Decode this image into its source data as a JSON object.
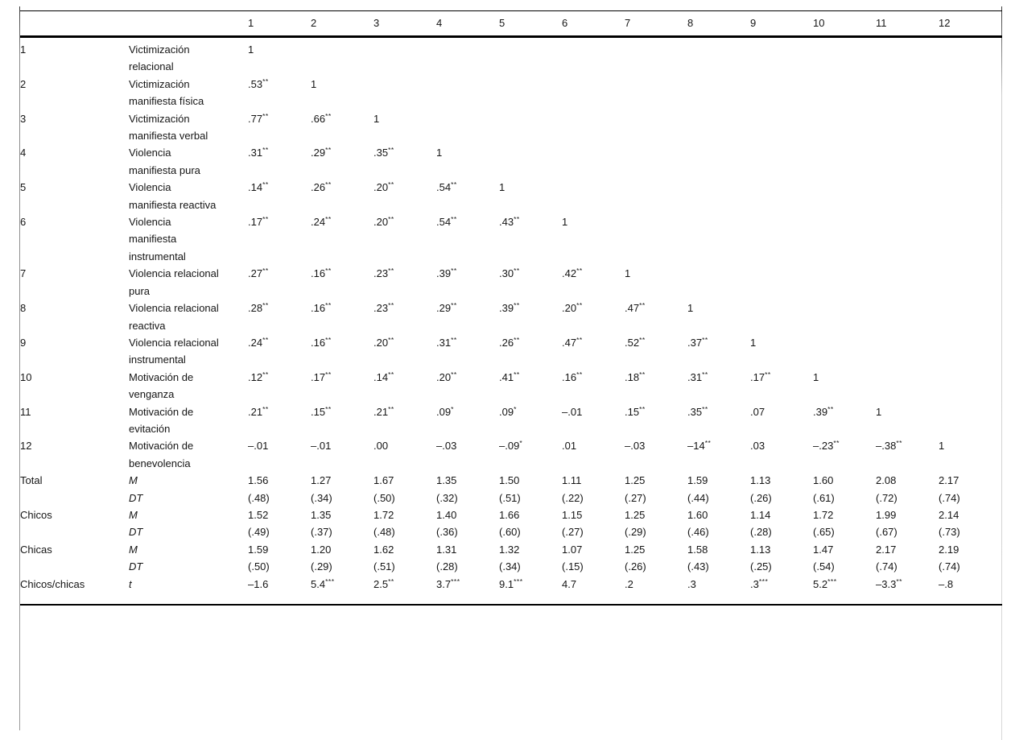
{
  "table": {
    "header_cols": [
      "1",
      "2",
      "3",
      "4",
      "5",
      "6",
      "7",
      "8",
      "9",
      "10",
      "11",
      "12"
    ],
    "variables": [
      {
        "num": "1",
        "name": "Victimización relacional",
        "values": [
          "1"
        ]
      },
      {
        "num": "2",
        "name": "Victimización manifiesta física",
        "values": [
          ".53**",
          "1"
        ]
      },
      {
        "num": "3",
        "name": "Victimización manifiesta verbal",
        "values": [
          ".77**",
          ".66**",
          "1"
        ]
      },
      {
        "num": "4",
        "name": "Violencia manifiesta pura",
        "values": [
          ".31**",
          ".29**",
          ".35**",
          "1"
        ]
      },
      {
        "num": "5",
        "name": "Violencia manifiesta reactiva",
        "values": [
          ".14**",
          ".26**",
          ".20**",
          ".54**",
          "1"
        ]
      },
      {
        "num": "6",
        "name": "Violencia manifiesta instrumental",
        "values": [
          ".17**",
          ".24**",
          ".20**",
          ".54**",
          ".43**",
          "1"
        ]
      },
      {
        "num": "7",
        "name": "Violencia relacional pura",
        "values": [
          ".27**",
          ".16**",
          ".23**",
          ".39**",
          ".30**",
          ".42**",
          "1"
        ]
      },
      {
        "num": "8",
        "name": "Violencia relacional reactiva",
        "values": [
          ".28**",
          ".16**",
          ".23**",
          ".29**",
          ".39**",
          ".20**",
          ".47**",
          "1"
        ]
      },
      {
        "num": "9",
        "name": "Violencia relacional instrumental",
        "values": [
          ".24**",
          ".16**",
          ".20**",
          ".31**",
          ".26**",
          ".47**",
          ".52**",
          ".37**",
          "1"
        ]
      },
      {
        "num": "10",
        "name": "Motivación de venganza",
        "values": [
          ".12**",
          ".17**",
          ".14**",
          ".20**",
          ".41**",
          ".16**",
          ".18**",
          ".31**",
          ".17**",
          "1"
        ]
      },
      {
        "num": "11",
        "name": "Motivación de evitación",
        "values": [
          ".21**",
          ".15**",
          ".21**",
          ".09*",
          ".09*",
          "–.01",
          ".15**",
          ".35**",
          ".07",
          ".39**",
          "1"
        ]
      },
      {
        "num": "12",
        "name": "Motivación de benevolencia",
        "values": [
          "–.01",
          "–.01",
          ".00",
          "–.03",
          "–.09*",
          ".01",
          "–.03",
          "–14**",
          ".03",
          "–.23**",
          "–.38**",
          "1"
        ]
      }
    ],
    "stats_rows": [
      {
        "group": "Total",
        "label": "M",
        "values": [
          "1.56",
          "1.27",
          "1.67",
          "1.35",
          "1.50",
          "1.11",
          "1.25",
          "1.59",
          "1.13",
          "1.60",
          "2.08",
          "2.17"
        ]
      },
      {
        "group": "",
        "label": "DT",
        "values": [
          "(.48)",
          "(.34)",
          "(.50)",
          "(.32)",
          "(.51)",
          "(.22)",
          "(.27)",
          "(.44)",
          "(.26)",
          "(.61)",
          "(.72)",
          "(.74)"
        ]
      },
      {
        "group": "Chicos",
        "label": "M",
        "values": [
          "1.52",
          "1.35",
          "1.72",
          "1.40",
          "1.66",
          "1.15",
          "1.25",
          "1.60",
          "1.14",
          "1.72",
          "1.99",
          "2.14"
        ]
      },
      {
        "group": "",
        "label": "DT",
        "values": [
          "(.49)",
          "(.37)",
          "(.48)",
          "(.36)",
          "(.60)",
          "(.27)",
          "(.29)",
          "(.46)",
          "(.28)",
          "(.65)",
          "(.67)",
          "(.73)"
        ]
      },
      {
        "group": "Chicas",
        "label": "M",
        "values": [
          "1.59",
          "1.20",
          "1.62",
          "1.31",
          "1.32",
          "1.07",
          "1.25",
          "1.58",
          "1.13",
          "1.47",
          "2.17",
          "2.19"
        ]
      },
      {
        "group": "",
        "label": "DT",
        "values": [
          "(.50)",
          "(.29)",
          "(.51)",
          "(.28)",
          "(.34)",
          "(.15)",
          "(.26)",
          "(.43)",
          "(.25)",
          "(.54)",
          "(.74)",
          "(.74)"
        ]
      },
      {
        "group": "Chicos/chicas",
        "label": "t",
        "values": [
          "–1.6",
          "5.4***",
          "2.5**",
          "3.7***",
          "9.1***",
          "4.7",
          ".2",
          ".3",
          ".3***",
          "5.2***",
          "–3.3**",
          "–.8"
        ]
      }
    ]
  }
}
